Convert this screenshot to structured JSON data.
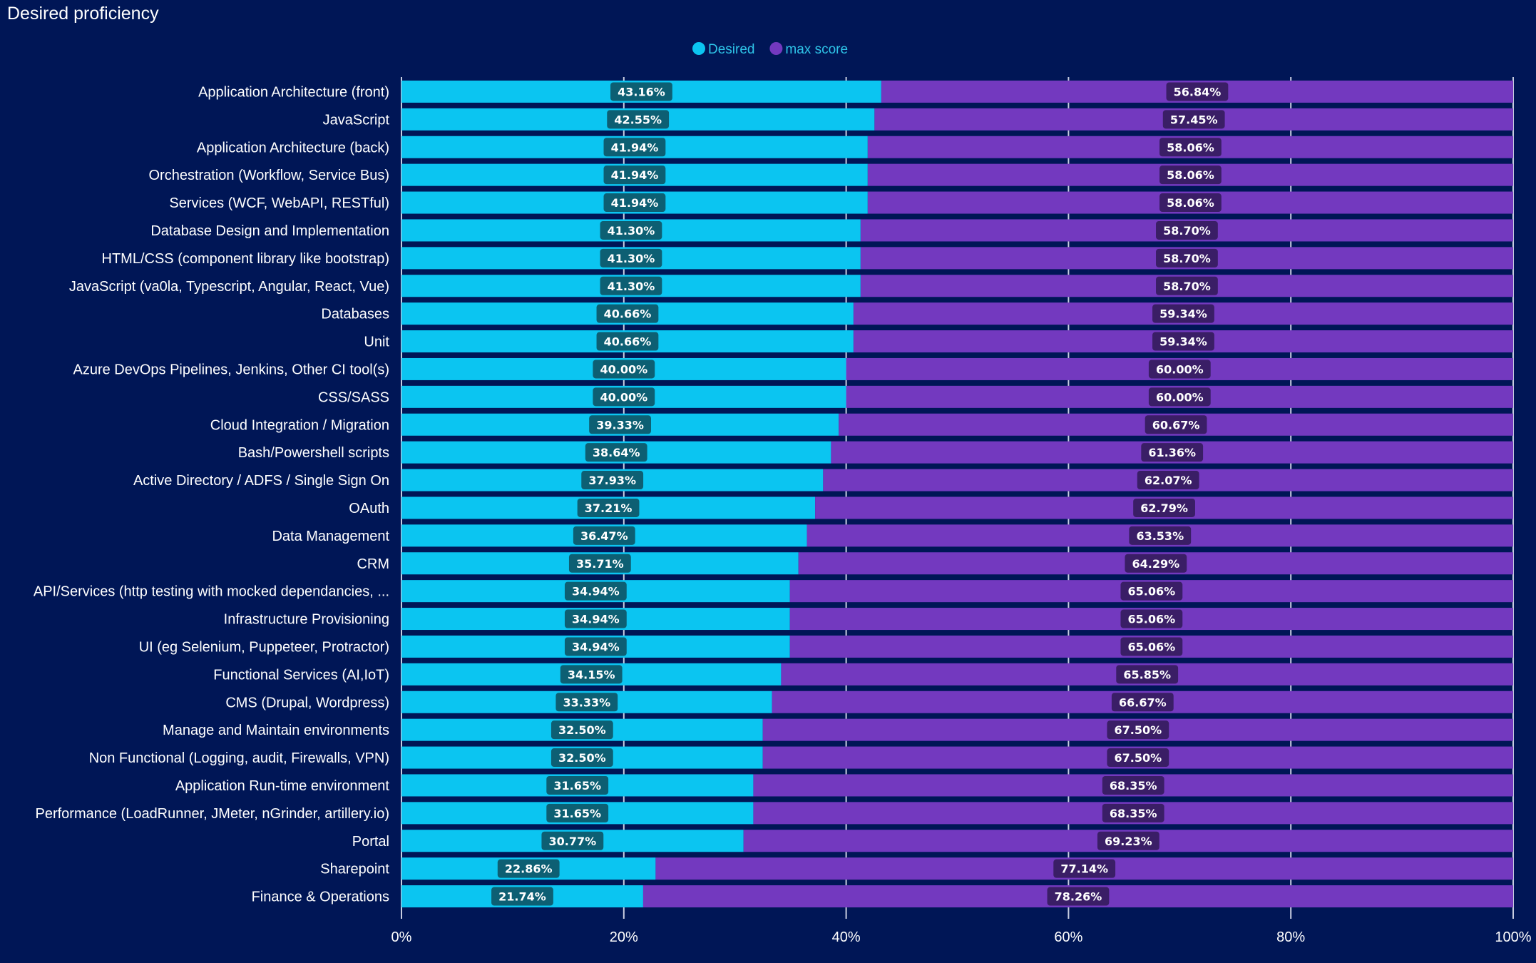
{
  "chart_data": {
    "type": "bar",
    "orientation": "horizontal",
    "stacked": "percent",
    "title": "Desired proficiency",
    "xlabel": "",
    "ylabel": "",
    "xlim": [
      0,
      100
    ],
    "x_ticks": [
      "0%",
      "20%",
      "40%",
      "60%",
      "80%",
      "100%"
    ],
    "x_tick_values": [
      0,
      20,
      40,
      60,
      80,
      100
    ],
    "grid": true,
    "legend_position": "top-center",
    "categories": [
      "Application Architecture (front)",
      "JavaScript",
      "Application Architecture (back)",
      "Orchestration (Workflow, Service Bus)",
      "Services (WCF, WebAPI, RESTful)",
      "Database Design and Implementation",
      "HTML/CSS (component library like bootstrap)",
      "JavaScript (va0la, Typescript, Angular, React, Vue)",
      "Databases",
      "Unit",
      "Azure DevOps Pipelines, Jenkins, Other CI tool(s)",
      "CSS/SASS",
      "Cloud Integration / Migration",
      "Bash/Powershell scripts",
      "Active Directory / ADFS / Single Sign On",
      "OAuth",
      "Data Management",
      "CRM",
      "API/Services (http testing with mocked dependancies, ...",
      "Infrastructure Provisioning",
      "UI (eg Selenium, Puppeteer, Protractor)",
      "Functional Services (AI,IoT)",
      "CMS (Drupal, Wordpress)",
      "Manage and Maintain environments",
      "Non Functional (Logging, audit, Firewalls, VPN)",
      "Application Run-time environment",
      "Performance (LoadRunner, JMeter, nGrinder, artillery.io)",
      "Portal",
      "Sharepoint",
      "Finance & Operations"
    ],
    "series": [
      {
        "name": "Desired",
        "color": "#0bc5f1",
        "label_bg": "#0d5f73",
        "values": [
          43.16,
          42.55,
          41.94,
          41.94,
          41.94,
          41.3,
          41.3,
          41.3,
          40.66,
          40.66,
          40.0,
          40.0,
          39.33,
          38.64,
          37.93,
          37.21,
          36.47,
          35.71,
          34.94,
          34.94,
          34.94,
          34.15,
          33.33,
          32.5,
          32.5,
          31.65,
          31.65,
          30.77,
          22.86,
          21.74
        ],
        "labels": [
          "43.16%",
          "42.55%",
          "41.94%",
          "41.94%",
          "41.94%",
          "41.30%",
          "41.30%",
          "41.30%",
          "40.66%",
          "40.66%",
          "40.00%",
          "40.00%",
          "39.33%",
          "38.64%",
          "37.93%",
          "37.21%",
          "36.47%",
          "35.71%",
          "34.94%",
          "34.94%",
          "34.94%",
          "34.15%",
          "33.33%",
          "32.50%",
          "32.50%",
          "31.65%",
          "31.65%",
          "30.77%",
          "22.86%",
          "21.74%"
        ]
      },
      {
        "name": "max score",
        "color": "#7339bf",
        "label_bg": "#3a1e66",
        "values": [
          56.84,
          57.45,
          58.06,
          58.06,
          58.06,
          58.7,
          58.7,
          58.7,
          59.34,
          59.34,
          60.0,
          60.0,
          60.67,
          61.36,
          62.07,
          62.79,
          63.53,
          64.29,
          65.06,
          65.06,
          65.06,
          65.85,
          66.67,
          67.5,
          67.5,
          68.35,
          68.35,
          69.23,
          77.14,
          78.26
        ],
        "labels": [
          "56.84%",
          "57.45%",
          "58.06%",
          "58.06%",
          "58.06%",
          "58.70%",
          "58.70%",
          "58.70%",
          "59.34%",
          "59.34%",
          "60.00%",
          "60.00%",
          "60.67%",
          "61.36%",
          "62.07%",
          "62.79%",
          "63.53%",
          "64.29%",
          "65.06%",
          "65.06%",
          "65.06%",
          "65.85%",
          "66.67%",
          "67.50%",
          "67.50%",
          "68.35%",
          "68.35%",
          "69.23%",
          "77.14%",
          "78.26%"
        ]
      }
    ]
  },
  "colors": {
    "background": "#001656",
    "text": "#ffffff",
    "gridline": "#c8cde0",
    "legend_text": "#2ec4e8"
  }
}
